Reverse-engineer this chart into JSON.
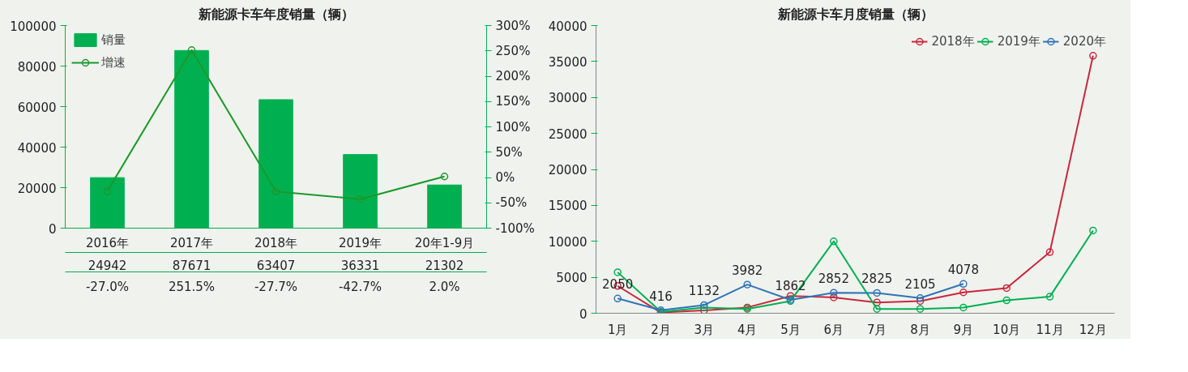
{
  "chart_data": [
    {
      "type": "bar",
      "title": "新能源卡车年度销量（辆）",
      "categories": [
        "2016年",
        "2017年",
        "2018年",
        "2019年",
        "20年1-9月"
      ],
      "series": [
        {
          "name": "销量",
          "color": "#00b050",
          "values": [
            24942,
            87671,
            63407,
            36331,
            21302
          ]
        },
        {
          "name": "增速",
          "type": "line",
          "axis": "y2",
          "marker": "circle",
          "color": "#1a9a2a",
          "values": [
            -27.0,
            251.5,
            -27.7,
            -42.7,
            2.0
          ],
          "value_labels": [
            "-27.0%",
            "251.5%",
            "-27.7%",
            "-42.7%",
            "2.0%"
          ]
        }
      ],
      "data_labels": true,
      "legend": "top left",
      "grid": false,
      "ylim": [
        0,
        100000
      ],
      "yticks": [
        0,
        20000,
        40000,
        60000,
        80000,
        100000
      ],
      "y2lim": [
        -100,
        300
      ],
      "y2ticks": [
        {
          "value": -100,
          "label": "-100%"
        },
        {
          "value": -50,
          "label": "-50%"
        },
        {
          "value": 0,
          "label": "0%"
        },
        {
          "value": 50,
          "label": "50%"
        },
        {
          "value": 100,
          "label": "100%"
        },
        {
          "value": 150,
          "label": "150%"
        },
        {
          "value": 200,
          "label": "200%"
        },
        {
          "value": 250,
          "label": "250%"
        },
        {
          "value": 300,
          "label": "300%"
        }
      ]
    },
    {
      "type": "line",
      "title": "新能源卡车月度销量（辆）",
      "categories": [
        "1月",
        "2月",
        "3月",
        "4月",
        "5月",
        "6月",
        "7月",
        "8月",
        "9月",
        "10月",
        "11月",
        "12月"
      ],
      "series": [
        {
          "name": "2018年",
          "color": "#c8283c",
          "values": [
            3800,
            100,
            400,
            800,
            2400,
            2200,
            1500,
            1700,
            2900,
            3500,
            8500,
            35800
          ]
        },
        {
          "name": "2019年",
          "color": "#00b050",
          "values": [
            5700,
            200,
            800,
            600,
            1700,
            10000,
            600,
            600,
            800,
            1800,
            2300,
            11500
          ]
        },
        {
          "name": "2020年",
          "color": "#2e75b6",
          "values": [
            2050,
            416,
            1132,
            3982,
            1862,
            2852,
            2825,
            2105,
            4078,
            null,
            null,
            null
          ],
          "value_labels": [
            "2050",
            "416",
            "1132",
            "3982",
            "1862",
            "2852",
            "2825",
            "2105",
            "4078",
            null,
            null,
            null
          ]
        }
      ],
      "marker": "circle",
      "legend": "top right",
      "grid": false,
      "ylim": [
        0,
        40000
      ],
      "yticks": [
        0,
        5000,
        10000,
        15000,
        20000,
        25000,
        30000,
        35000,
        40000
      ]
    }
  ]
}
